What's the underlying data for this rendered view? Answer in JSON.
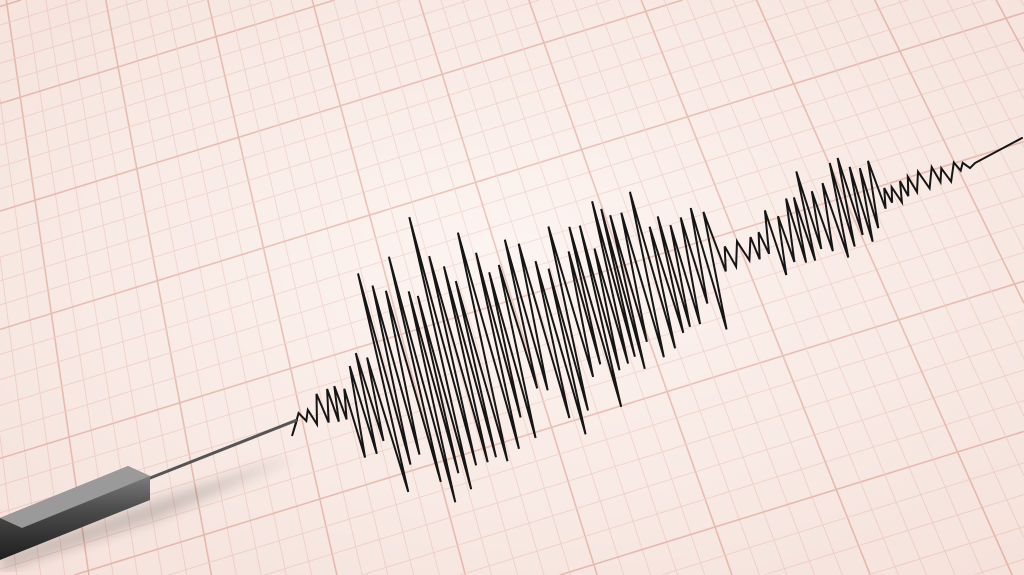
{
  "colors": {
    "paper": "#fbefea",
    "grid_minor": "#efc9bf",
    "grid_major": "#e3a99b",
    "trace": "#151515",
    "stylus": "#4a4a4a"
  },
  "icons": [
    "seismograph-stylus-icon"
  ]
}
